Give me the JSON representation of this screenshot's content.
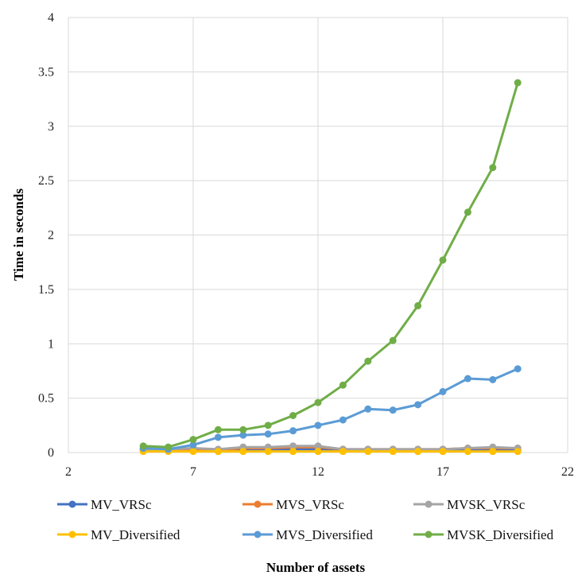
{
  "chart_data": {
    "type": "line",
    "xlabel": "Number of assets",
    "ylabel": "Time in seconds",
    "xlim": [
      2,
      22
    ],
    "ylim": [
      0,
      4
    ],
    "x_ticks": [
      2,
      7,
      12,
      17,
      22
    ],
    "y_ticks": [
      0,
      0.5,
      1,
      1.5,
      2,
      2.5,
      3,
      3.5,
      4
    ],
    "grid": "vertical and horizontal",
    "legend": "bottom",
    "x": [
      5,
      6,
      7,
      8,
      9,
      10,
      11,
      12,
      13,
      14,
      15,
      16,
      17,
      18,
      19,
      20
    ],
    "series": [
      {
        "name": "MV_VRSc",
        "color": "#4472C4",
        "values": [
          0.03,
          0.02,
          0.02,
          0.02,
          0.03,
          0.03,
          0.03,
          0.03,
          0.02,
          0.02,
          0.02,
          0.02,
          0.02,
          0.02,
          0.02,
          0.02
        ]
      },
      {
        "name": "MVS_VRSc",
        "color": "#ED7D31",
        "values": [
          0.02,
          0.02,
          0.02,
          0.02,
          0.04,
          0.04,
          0.05,
          0.05,
          0.03,
          0.03,
          0.03,
          0.03,
          0.03,
          0.04,
          0.04,
          0.04
        ]
      },
      {
        "name": "MVSK_VRSc",
        "color": "#A5A5A5",
        "values": [
          0.03,
          0.03,
          0.04,
          0.03,
          0.05,
          0.05,
          0.06,
          0.06,
          0.03,
          0.03,
          0.03,
          0.03,
          0.03,
          0.04,
          0.05,
          0.04
        ]
      },
      {
        "name": "MV_Diversified",
        "color": "#FFC000",
        "values": [
          0.01,
          0.01,
          0.01,
          0.01,
          0.01,
          0.01,
          0.01,
          0.01,
          0.01,
          0.01,
          0.01,
          0.01,
          0.01,
          0.01,
          0.01,
          0.01
        ]
      },
      {
        "name": "MVS_Diversified",
        "color": "#5B9BD5",
        "values": [
          0.04,
          0.03,
          0.07,
          0.14,
          0.16,
          0.17,
          0.2,
          0.25,
          0.3,
          0.4,
          0.39,
          0.44,
          0.56,
          0.68,
          0.67,
          0.77
        ]
      },
      {
        "name": "MVSK_Diversified",
        "color": "#70AD47",
        "values": [
          0.06,
          0.05,
          0.12,
          0.21,
          0.21,
          0.25,
          0.34,
          0.46,
          0.62,
          0.84,
          1.03,
          1.35,
          1.77,
          2.21,
          2.62,
          3.4
        ]
      }
    ]
  }
}
